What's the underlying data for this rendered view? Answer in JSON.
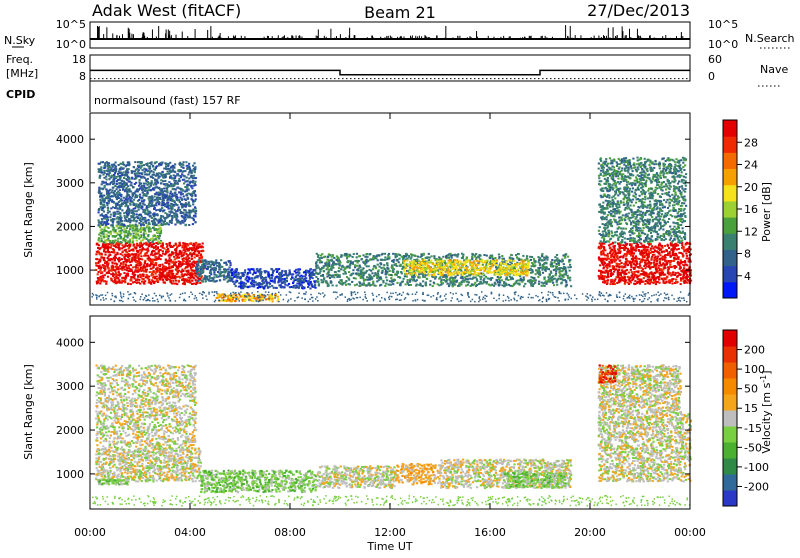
{
  "header": {
    "station": "Adak West (fitACF)",
    "beam": "Beam 21",
    "date": "27/Dec/2013"
  },
  "panels": {
    "nsky": {
      "label": "N.Sky",
      "right_label": "N.Search",
      "left_ticks": [
        "10^5",
        "10^0"
      ],
      "right_ticks": [
        "10^5",
        "10^0"
      ]
    },
    "freq": {
      "label_line1": "Freq.",
      "label_line2": "[MHz]",
      "right_label": "Nave",
      "left_ticks": [
        "18",
        "8"
      ],
      "right_ticks": [
        "60",
        "0"
      ]
    },
    "cpid": {
      "label": "CPID",
      "text": "normalsound (fast) 157 RF"
    }
  },
  "colorbars": {
    "power": {
      "title": "Power [dB]",
      "ticks": [
        "28",
        "24",
        "20",
        "16",
        "12",
        "8",
        "4"
      ],
      "colors": [
        "#0018f8",
        "#2845b4",
        "#31628a",
        "#3a8070",
        "#4aa03a",
        "#9cd034",
        "#f5e21c",
        "#f5a000",
        "#f36b00",
        "#f02a00",
        "#e30000"
      ]
    },
    "velocity": {
      "title_text": "Velocity [m s",
      "title_sup": "-1",
      "title_close": "]",
      "ticks": [
        "200",
        "100",
        "50",
        "15",
        "-15",
        "-50",
        "-100",
        "-200"
      ],
      "colors": [
        "#2a38c8",
        "#2f6a9a",
        "#2f8a48",
        "#4ab030",
        "#78d040",
        "#bebebe",
        "#f5a51c",
        "#f58a00",
        "#f06000",
        "#e83000",
        "#e00000"
      ]
    }
  },
  "time_axis": {
    "title": "Time UT",
    "ticks": [
      "00:00",
      "04:00",
      "08:00",
      "12:00",
      "16:00",
      "20:00",
      "00:00"
    ]
  },
  "chart_data": [
    {
      "type": "line",
      "name": "freq",
      "x_hours": [
        0,
        10,
        10,
        18,
        18,
        24
      ],
      "freq_mhz": [
        12.1,
        12.1,
        10.4,
        10.4,
        12.1,
        12.1
      ],
      "nave": [
        10,
        10,
        10,
        10,
        10,
        10
      ],
      "ylim": [
        8,
        18
      ]
    },
    {
      "type": "heatmap",
      "name": "power",
      "ylabel": "Slant Range [km]",
      "yticks": [
        1000,
        2000,
        3000,
        4000
      ],
      "ylim": [
        200,
        4600
      ],
      "xlim": [
        0,
        24
      ],
      "regions": [
        {
          "x": [
            0.2,
            4.5
          ],
          "y": [
            700,
            1650
          ],
          "level": 10
        },
        {
          "x": [
            0.3,
            2.8
          ],
          "y": [
            1650,
            2050
          ],
          "level": 4
        },
        {
          "x": [
            0.3,
            4.2
          ],
          "y": [
            2050,
            3500
          ],
          "level": 2
        },
        {
          "x": [
            4.2,
            5.6
          ],
          "y": [
            750,
            1250
          ],
          "level": 2
        },
        {
          "x": [
            5.6,
            9.0
          ],
          "y": [
            600,
            1050
          ],
          "level": 1
        },
        {
          "x": [
            9.0,
            19.2
          ],
          "y": [
            650,
            1400
          ],
          "level": 3
        },
        {
          "x": [
            12.5,
            17.5
          ],
          "y": [
            900,
            1250
          ],
          "level": 6
        },
        {
          "x": [
            5.0,
            7.5
          ],
          "y": [
            300,
            470
          ],
          "level": 7
        },
        {
          "x": [
            20.3,
            24.0
          ],
          "y": [
            700,
            1650
          ],
          "level": 10
        },
        {
          "x": [
            20.3,
            23.8
          ],
          "y": [
            1650,
            3600
          ],
          "level": 3
        }
      ]
    },
    {
      "type": "heatmap",
      "name": "velocity",
      "ylabel": "Slant Range [km]",
      "yticks": [
        1000,
        2000,
        3000,
        4000
      ],
      "ylim": [
        200,
        4600
      ],
      "xlim": [
        0,
        24
      ],
      "regions": [
        {
          "x": [
            0.2,
            4.4
          ],
          "y": [
            850,
            1600
          ],
          "level": 5
        },
        {
          "x": [
            0.2,
            4.2
          ],
          "y": [
            1600,
            3500
          ],
          "level": 5
        },
        {
          "x": [
            0.3,
            1.5
          ],
          "y": [
            780,
            900
          ],
          "level": 4
        },
        {
          "x": [
            4.4,
            9.0
          ],
          "y": [
            600,
            1100
          ],
          "level": 4
        },
        {
          "x": [
            9.0,
            12.2
          ],
          "y": [
            700,
            1200
          ],
          "level": 5
        },
        {
          "x": [
            12.2,
            14.0
          ],
          "y": [
            780,
            1250
          ],
          "level": 6
        },
        {
          "x": [
            14.0,
            19.2
          ],
          "y": [
            700,
            1350
          ],
          "level": 5
        },
        {
          "x": [
            16.5,
            19.0
          ],
          "y": [
            700,
            1050
          ],
          "level": 4
        },
        {
          "x": [
            20.3,
            24.0
          ],
          "y": [
            850,
            2400
          ],
          "level": 5
        },
        {
          "x": [
            20.3,
            23.6
          ],
          "y": [
            2400,
            3500
          ],
          "level": 5
        },
        {
          "x": [
            20.3,
            21.0
          ],
          "y": [
            3100,
            3500
          ],
          "level": 9
        }
      ]
    }
  ]
}
